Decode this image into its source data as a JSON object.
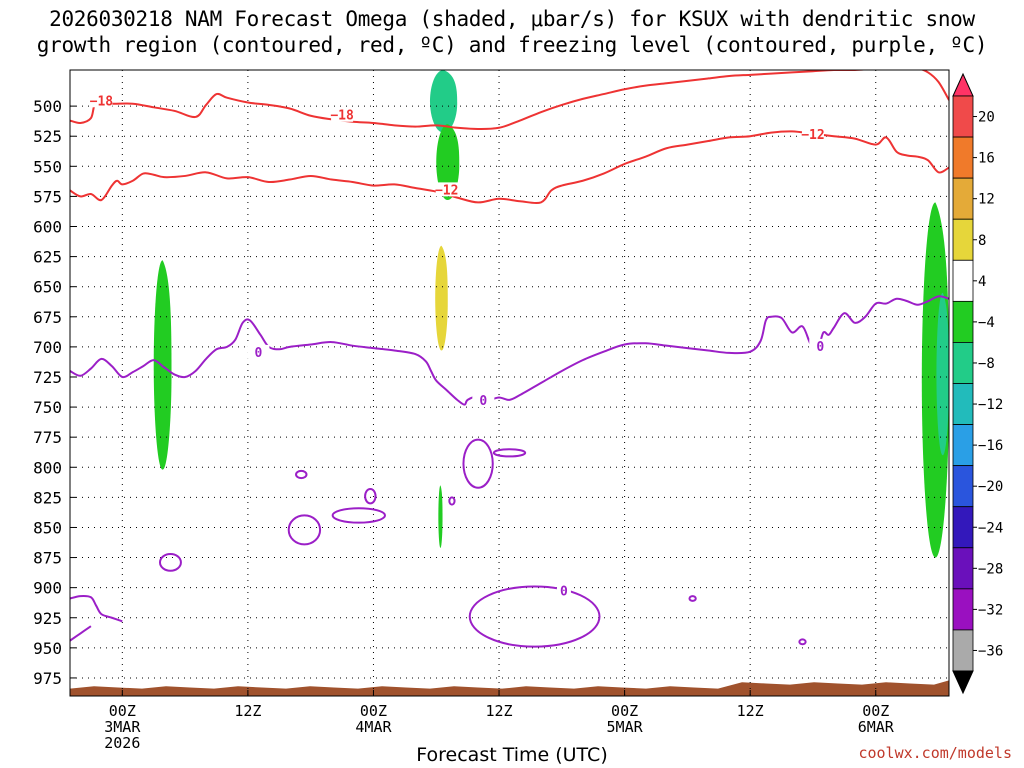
{
  "chart_data": {
    "type": "time-height",
    "title": "2026030218 NAM Forecast Omega (shaded, μbar/s) for KSUX with dendritic snow\ngrowth region (contoured, red, ºC) and freezing level (contoured, purple, ºC)",
    "xlabel": "Forecast Time (UTC)",
    "credit": "coolwx.com/models",
    "x_axis": {
      "unit": "hours_from_2026030218",
      "range": [
        1,
        85
      ],
      "ticks": [
        {
          "hour": 6,
          "label_lines": [
            "00Z",
            "3MAR",
            "2026"
          ]
        },
        {
          "hour": 18,
          "label_lines": [
            "12Z"
          ]
        },
        {
          "hour": 30,
          "label_lines": [
            "00Z",
            "4MAR"
          ]
        },
        {
          "hour": 42,
          "label_lines": [
            "12Z"
          ]
        },
        {
          "hour": 54,
          "label_lines": [
            "00Z",
            "5MAR"
          ]
        },
        {
          "hour": 66,
          "label_lines": [
            "12Z"
          ]
        },
        {
          "hour": 78,
          "label_lines": [
            "00Z",
            "6MAR"
          ]
        }
      ]
    },
    "y_axis": {
      "unit": "hPa",
      "range": [
        470,
        990
      ],
      "ticks": [
        500,
        525,
        550,
        575,
        600,
        625,
        650,
        675,
        700,
        725,
        750,
        775,
        800,
        825,
        850,
        875,
        900,
        925,
        950,
        975
      ],
      "grid": "dotted"
    },
    "colorbar": {
      "levels": [
        20,
        16,
        12,
        8,
        4,
        -4,
        -8,
        -12,
        -16,
        -20,
        -24,
        -28,
        -32,
        -36
      ],
      "colors": [
        "#ff3366",
        "#f04a4a",
        "#f07a2a",
        "#e4aa38",
        "#e6d63a",
        "#ffffff",
        "#22cc22",
        "#22cc88",
        "#22bbbb",
        "#2a9fe6",
        "#2a55dd",
        "#3318bb",
        "#6a10bb",
        "#9a10c0",
        "#aaaaaa",
        "#000000"
      ]
    },
    "omega_regions": [
      {
        "value_bin": "-8 to -4",
        "color": "#22cc22",
        "pressure_range_hPa": [
          628,
          802
        ],
        "hours": [
          9.0,
          10.7
        ]
      },
      {
        "value_bin": "-12 to -8",
        "color": "#22cc88",
        "pressure_range_hPa": [
          470,
          522
        ],
        "hours": [
          35.4,
          38.0
        ]
      },
      {
        "value_bin": "-8 to -4",
        "color": "#22cc22",
        "pressure_range_hPa": [
          515,
          578
        ],
        "hours": [
          36.0,
          38.2
        ]
      },
      {
        "value_bin": "4 to 8",
        "color": "#e6d63a",
        "pressure_range_hPa": [
          616,
          703
        ],
        "hours": [
          35.9,
          37.1
        ]
      },
      {
        "value_bin": "-8 to -4",
        "color": "#22cc22",
        "pressure_range_hPa": [
          815,
          867
        ],
        "hours": [
          36.2,
          36.6
        ]
      },
      {
        "value_bin": "-8 to -4",
        "color": "#22cc22",
        "pressure_range_hPa": [
          580,
          875
        ],
        "hours": [
          82.4,
          85.0
        ]
      },
      {
        "value_bin": "-12 to -8",
        "color": "#22cc88",
        "pressure_range_hPa": [
          655,
          790
        ],
        "hours": [
          83.8,
          85.0
        ]
      }
    ],
    "terrain": {
      "color": "#a0522d",
      "top_pressure_hPa": 982
    },
    "contours": [
      {
        "name": "-18C",
        "label": "−18",
        "color": "#ee3333",
        "group": "dendritic snow growth region",
        "x": [
          1,
          2,
          3,
          3.5,
          5,
          7,
          9,
          11,
          13,
          14,
          15,
          16,
          18,
          20,
          22,
          24,
          26,
          28,
          30,
          32,
          34,
          36,
          38,
          40,
          42,
          44,
          46,
          48,
          50,
          52,
          54,
          56,
          58,
          60,
          62,
          64,
          66,
          68,
          70,
          72,
          74,
          76,
          78,
          80,
          82,
          83,
          84,
          85
        ],
        "y": [
          512,
          514,
          510,
          497,
          498,
          498,
          501,
          504,
          509,
          499,
          490,
          493,
          497,
          499,
          502,
          508,
          511,
          513,
          514,
          516,
          517,
          516,
          518,
          519,
          518,
          512,
          505,
          499,
          494,
          490,
          486,
          483,
          481,
          479,
          477,
          475,
          474,
          473,
          472,
          471,
          470,
          470,
          469,
          469,
          469,
          472,
          480,
          495
        ],
        "label_points": [
          {
            "x": 4.0,
            "y": 496
          },
          {
            "x": 27.0,
            "y": 508
          }
        ]
      },
      {
        "name": "-12C",
        "label": "−12",
        "color": "#ee3333",
        "group": "dendritic snow growth region",
        "x": [
          1,
          2,
          3,
          4,
          5,
          5.5,
          6,
          7,
          8,
          9,
          10,
          12,
          14,
          16,
          18,
          20,
          22,
          24,
          26,
          28,
          30,
          32,
          34,
          36,
          38,
          40,
          42,
          44,
          46,
          47,
          48,
          50,
          52,
          54,
          56,
          58,
          60,
          62,
          64,
          66,
          68,
          70,
          72,
          74,
          76,
          78,
          79,
          80,
          81,
          82,
          83,
          84,
          85
        ],
        "y": [
          570,
          575,
          573,
          578,
          566,
          562,
          565,
          562,
          556,
          557,
          559,
          558,
          555,
          560,
          559,
          563,
          561,
          558,
          561,
          563,
          566,
          565,
          568,
          571,
          576,
          580,
          577,
          579,
          580,
          570,
          566,
          562,
          556,
          548,
          542,
          535,
          532,
          529,
          526,
          525,
          522,
          521,
          523,
          525,
          527,
          532,
          526,
          538,
          541,
          542,
          545,
          555,
          551
        ],
        "label_points": [
          {
            "x": 37.0,
            "y": 570
          },
          {
            "x": 72.0,
            "y": 524
          }
        ]
      },
      {
        "name": "0C",
        "label": "0",
        "color": "#9b1fc7",
        "group": "freezing level",
        "x": [
          1,
          2,
          3,
          4,
          5,
          6,
          7,
          8,
          9,
          10,
          11,
          12,
          13,
          14,
          15,
          16,
          16.8,
          17.5,
          18.2,
          19.2,
          20,
          21,
          22,
          24,
          26,
          28,
          30,
          32,
          34,
          35,
          35.5,
          36,
          37,
          38,
          38.7,
          39,
          40,
          41,
          42,
          43,
          44,
          46,
          48,
          50,
          52,
          54,
          56,
          58,
          60,
          62,
          64,
          66,
          67,
          67.5,
          68,
          69,
          70,
          71,
          71.8,
          72.5,
          73,
          73.5,
          74,
          75,
          76,
          77,
          78,
          79,
          80,
          81,
          82,
          83,
          84,
          85
        ],
        "y": [
          720,
          724,
          718,
          710,
          716,
          725,
          721,
          716,
          711,
          717,
          723,
          725,
          720,
          710,
          702,
          700,
          694,
          680,
          678,
          690,
          700,
          702,
          700,
          698,
          696,
          699,
          701,
          703,
          706,
          712,
          720,
          728,
          736,
          744,
          748,
          744,
          741,
          744,
          742,
          744,
          740,
          730,
          720,
          711,
          704,
          698,
          697,
          699,
          701,
          703,
          705,
          704,
          695,
          678,
          675,
          676,
          688,
          683,
          698,
          700,
          688,
          690,
          684,
          672,
          680,
          675,
          664,
          664,
          660,
          662,
          665,
          662,
          658,
          660
        ],
        "label_points": [
          {
            "x": 19.0,
            "y": 705
          },
          {
            "x": 40.5,
            "y": 745
          },
          {
            "x": 72.7,
            "y": 700
          }
        ]
      }
    ],
    "closed_contours_0C": [
      {
        "center_hour": 10.6,
        "center_hPa": 879,
        "r_hours": 1.0,
        "r_hPa": 7
      },
      {
        "center_hour": 23.4,
        "center_hPa": 852,
        "r_hours": 1.5,
        "r_hPa": 12
      },
      {
        "center_hour": 28.6,
        "center_hPa": 840,
        "r_hours": 2.5,
        "r_hPa": 6
      },
      {
        "center_hour": 29.7,
        "center_hPa": 824,
        "r_hours": 0.5,
        "r_hPa": 6
      },
      {
        "center_hour": 23.1,
        "center_hPa": 806,
        "r_hours": 0.5,
        "r_hPa": 3
      },
      {
        "center_hour": 37.5,
        "center_hPa": 828,
        "r_hours": 0.25,
        "r_hPa": 3
      },
      {
        "center_hour": 40.0,
        "center_hPa": 797,
        "r_hours": 1.4,
        "r_hPa": 20
      },
      {
        "center_hour": 43.0,
        "center_hPa": 788,
        "r_hours": 1.5,
        "r_hPa": 3
      },
      {
        "center_hour": 45.4,
        "center_hPa": 924,
        "r_hours": 6.2,
        "r_hPa": 25
      },
      {
        "center_hour": 60.5,
        "center_hPa": 909,
        "r_hours": 0.3,
        "r_hPa": 2
      },
      {
        "center_hour": 71.0,
        "center_hPa": 945,
        "r_hours": 0.3,
        "r_hPa": 2
      }
    ],
    "open_contours_0C_lower": [
      {
        "x": [
          1,
          2,
          3,
          3.5,
          4,
          5,
          6
        ],
        "y": [
          909,
          907,
          908,
          915,
          922,
          925,
          928
        ]
      },
      {
        "x": [
          1,
          2,
          3
        ],
        "y": [
          944,
          938,
          932
        ]
      }
    ]
  }
}
